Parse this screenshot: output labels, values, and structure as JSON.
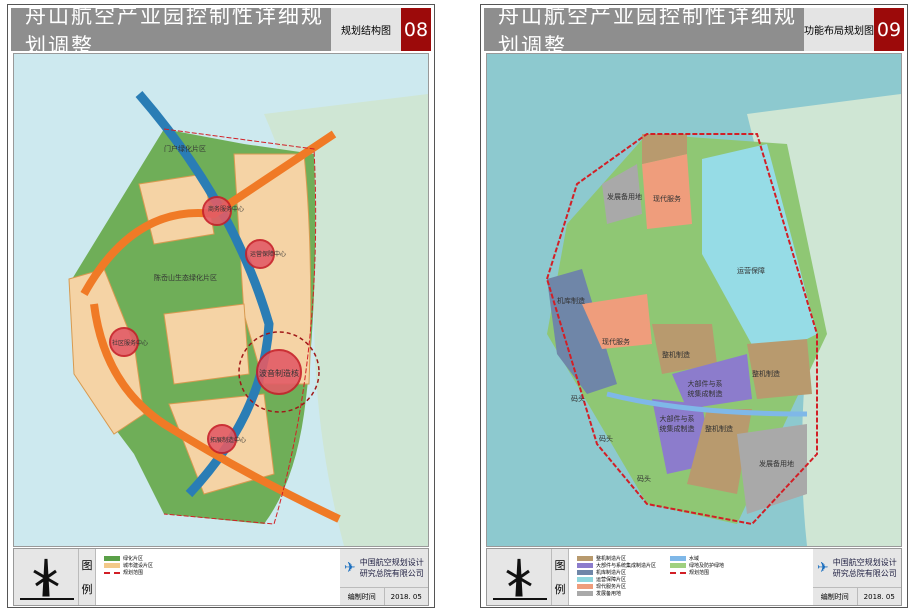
{
  "sheets": [
    {
      "title": "舟山航空产业园控制性详细规划调整",
      "subtitle": "规划结构图",
      "number": "08",
      "labels": {
        "gateway": "门户绿化片区",
        "business": "商务服务中心",
        "operation": "运营保障中心",
        "eco": "陈岙山生态绿化片区",
        "community": "社区服务中心",
        "boeing": "波音制造核",
        "expand": "拓展制造中心"
      },
      "legend_title": [
        "图",
        "例"
      ],
      "legend": [
        {
          "label": "绿化片区",
          "color": "#5aa048"
        },
        {
          "label": "城市建设片区",
          "color": "#f3c98a"
        },
        {
          "label": "规划范围",
          "color": "#d21f26"
        }
      ],
      "org": "中国航空规划设计研究总院有限公司",
      "date_label": "编制时间",
      "date": "2018. 05"
    },
    {
      "title": "舟山航空产业园控制性详细规划调整",
      "subtitle": "功能布局规划图",
      "number": "09",
      "labels": {
        "reserve1": "发展备用地",
        "service1": "现代服务",
        "ops": "运营保障",
        "hangar": "机库制造",
        "service2": "现代服务",
        "assembly1": "整机制造",
        "parts1": "大部件与系统集成制造",
        "assembly2": "整机制造",
        "parts2": "大部件与系统集成制造",
        "assembly3": "整机制造",
        "reserve2": "发展备用地",
        "pier1": "码头",
        "pier2": "码头",
        "pier3": "码头"
      },
      "legend_title": [
        "图",
        "例"
      ],
      "legend": [
        {
          "label": "整机制造片区",
          "color": "#b89a6e"
        },
        {
          "label": "大部件与系统集成制造片区",
          "color": "#8c7ccc"
        },
        {
          "label": "机库制造片区",
          "color": "#6f86a8"
        },
        {
          "label": "运营保障片区",
          "color": "#8fd7de"
        },
        {
          "label": "现代服务片区",
          "color": "#ef9d7c"
        },
        {
          "label": "发展备用地",
          "color": "#a9a9a9"
        },
        {
          "label": "水域",
          "color": "#7fb8e8"
        },
        {
          "label": "绿地及防护绿地",
          "color": "#9fd07f"
        },
        {
          "label": "规划范围",
          "color": "#d21f26"
        }
      ],
      "org": "中国航空规划设计研究总院有限公司",
      "date_label": "编制时间",
      "date": "2018. 05"
    }
  ]
}
